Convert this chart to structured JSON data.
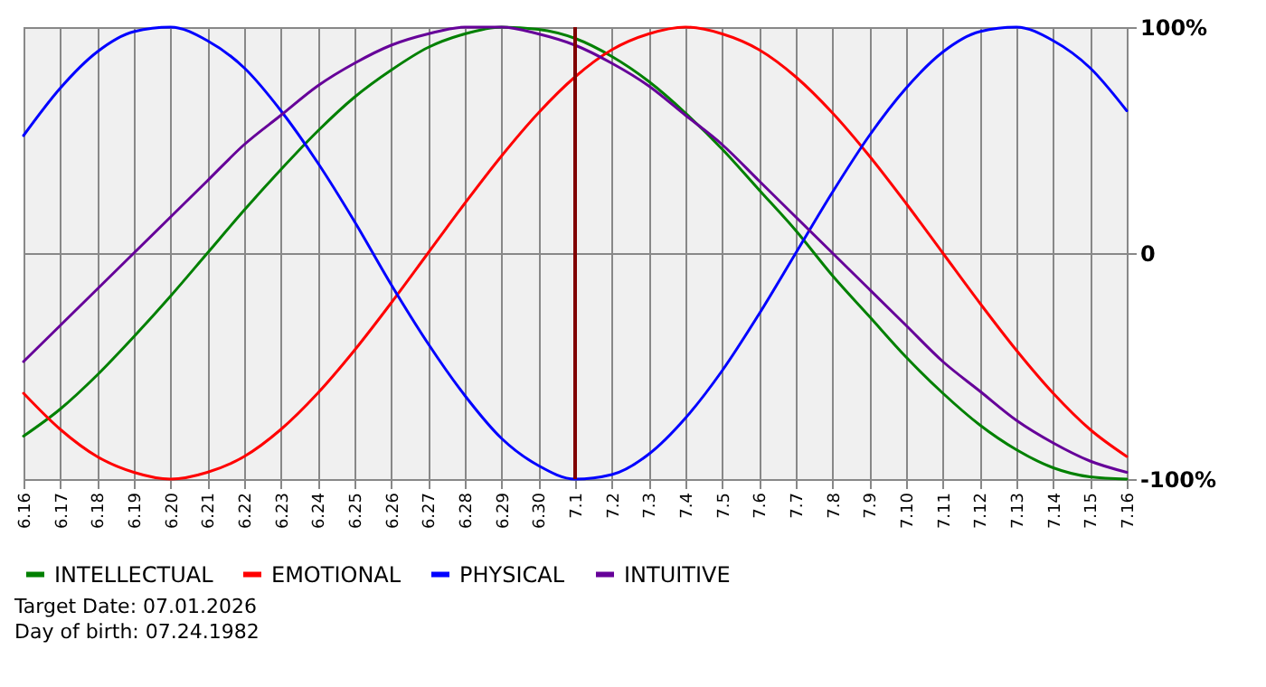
{
  "chart_data": {
    "type": "line",
    "categories": [
      "6.16",
      "6.17",
      "6.18",
      "6.19",
      "6.20",
      "6.21",
      "6.22",
      "6.23",
      "6.24",
      "6.25",
      "6.26",
      "6.27",
      "6.28",
      "6.29",
      "6.30",
      "7.1",
      "7.2",
      "7.3",
      "7.4",
      "7.5",
      "7.6",
      "7.7",
      "7.8",
      "7.9",
      "7.10",
      "7.11",
      "7.12",
      "7.13",
      "7.14",
      "7.15",
      "7.16"
    ],
    "series": [
      {
        "name": "INTELLECTUAL",
        "color": "#008000",
        "values": [
          -81,
          -69,
          -54,
          -37,
          -19,
          0,
          19,
          37,
          54,
          69,
          81,
          91,
          97,
          100,
          99,
          95,
          87,
          76,
          62,
          46,
          28,
          10,
          -10,
          -28,
          -46,
          -62,
          -76,
          -87,
          -95,
          -99,
          -100
        ]
      },
      {
        "name": "EMOTIONAL",
        "color": "#ff0000",
        "values": [
          -62,
          -78,
          -90,
          -97,
          -100,
          -97,
          -90,
          -78,
          -62,
          -43,
          -22,
          0,
          22,
          43,
          62,
          78,
          90,
          97,
          100,
          97,
          90,
          78,
          62,
          43,
          22,
          0,
          -22,
          -43,
          -62,
          -78,
          -90
        ]
      },
      {
        "name": "PHYSICAL",
        "color": "#0000ff",
        "values": [
          52,
          73,
          89,
          98,
          100,
          94,
          82,
          63,
          40,
          14,
          -14,
          -40,
          -63,
          -82,
          -94,
          -100,
          -98,
          -89,
          -73,
          -52,
          -27,
          0,
          27,
          52,
          73,
          89,
          98,
          100,
          94,
          82,
          63
        ]
      },
      {
        "name": "INTUITIVE",
        "color": "#660099",
        "values": [
          -48,
          -32,
          -16,
          0,
          16,
          32,
          48,
          61,
          74,
          84,
          92,
          97,
          100,
          100,
          97,
          92,
          84,
          74,
          61,
          48,
          32,
          16,
          0,
          -16,
          -32,
          -48,
          -61,
          -74,
          -84,
          -92,
          -97
        ]
      }
    ],
    "ylim": [
      -100,
      100
    ],
    "yticks": [
      {
        "value": -100,
        "label": "-100%"
      },
      0,
      {
        "value": 100,
        "label": "100%"
      }
    ],
    "ref_lines": [
      {
        "axis": "x",
        "value": "7.1",
        "color": "#800000"
      }
    ],
    "annotations": [
      "Target Date: 07.01.2026",
      "Day of birth: 07.24.1982"
    ],
    "grid": true,
    "legend": "bottom left"
  }
}
